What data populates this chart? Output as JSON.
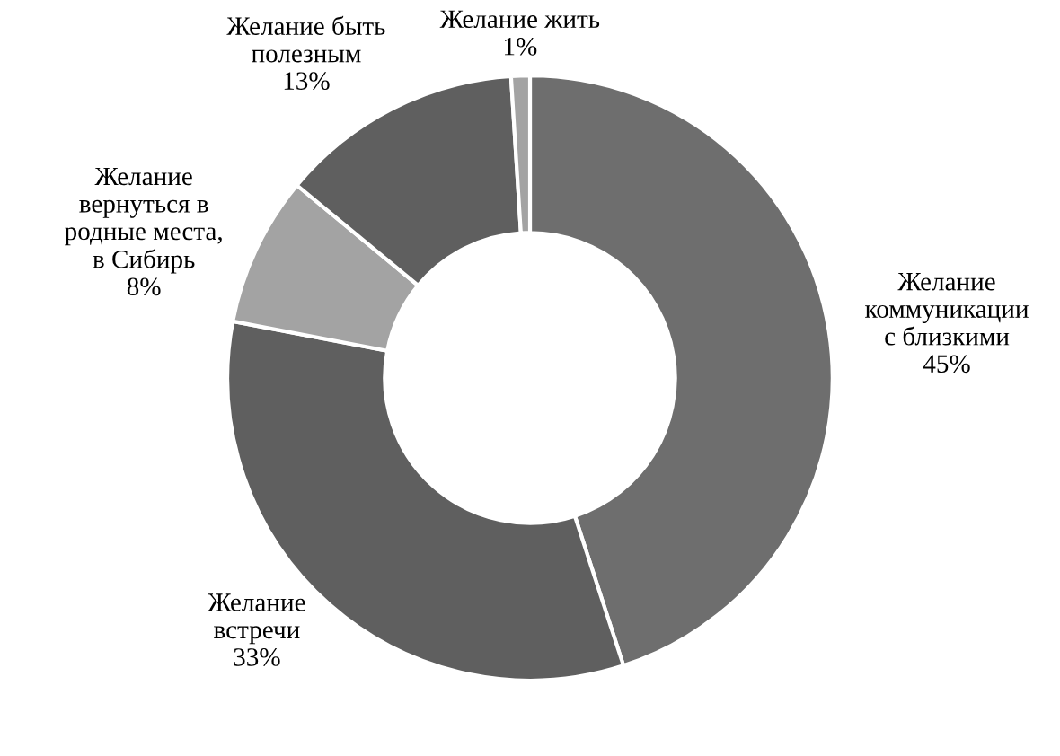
{
  "chart_data": {
    "type": "donut",
    "categories": [
      "Желание\nкоммуникации\nс близкими",
      "Желание\nвстречи",
      "Желание\nвернуться в\nродные места,\nв Сибирь",
      "Желание быть\nполезным",
      "Желание жить"
    ],
    "values": [
      45,
      33,
      8,
      13,
      1
    ],
    "value_labels": [
      "45%",
      "33%",
      "8%",
      "13%",
      "1%"
    ],
    "colors": [
      "#6e6e6e",
      "#5f5f5f",
      "#a3a3a3",
      "#5f5f5f",
      "#a3a3a3"
    ],
    "legend": false
  }
}
